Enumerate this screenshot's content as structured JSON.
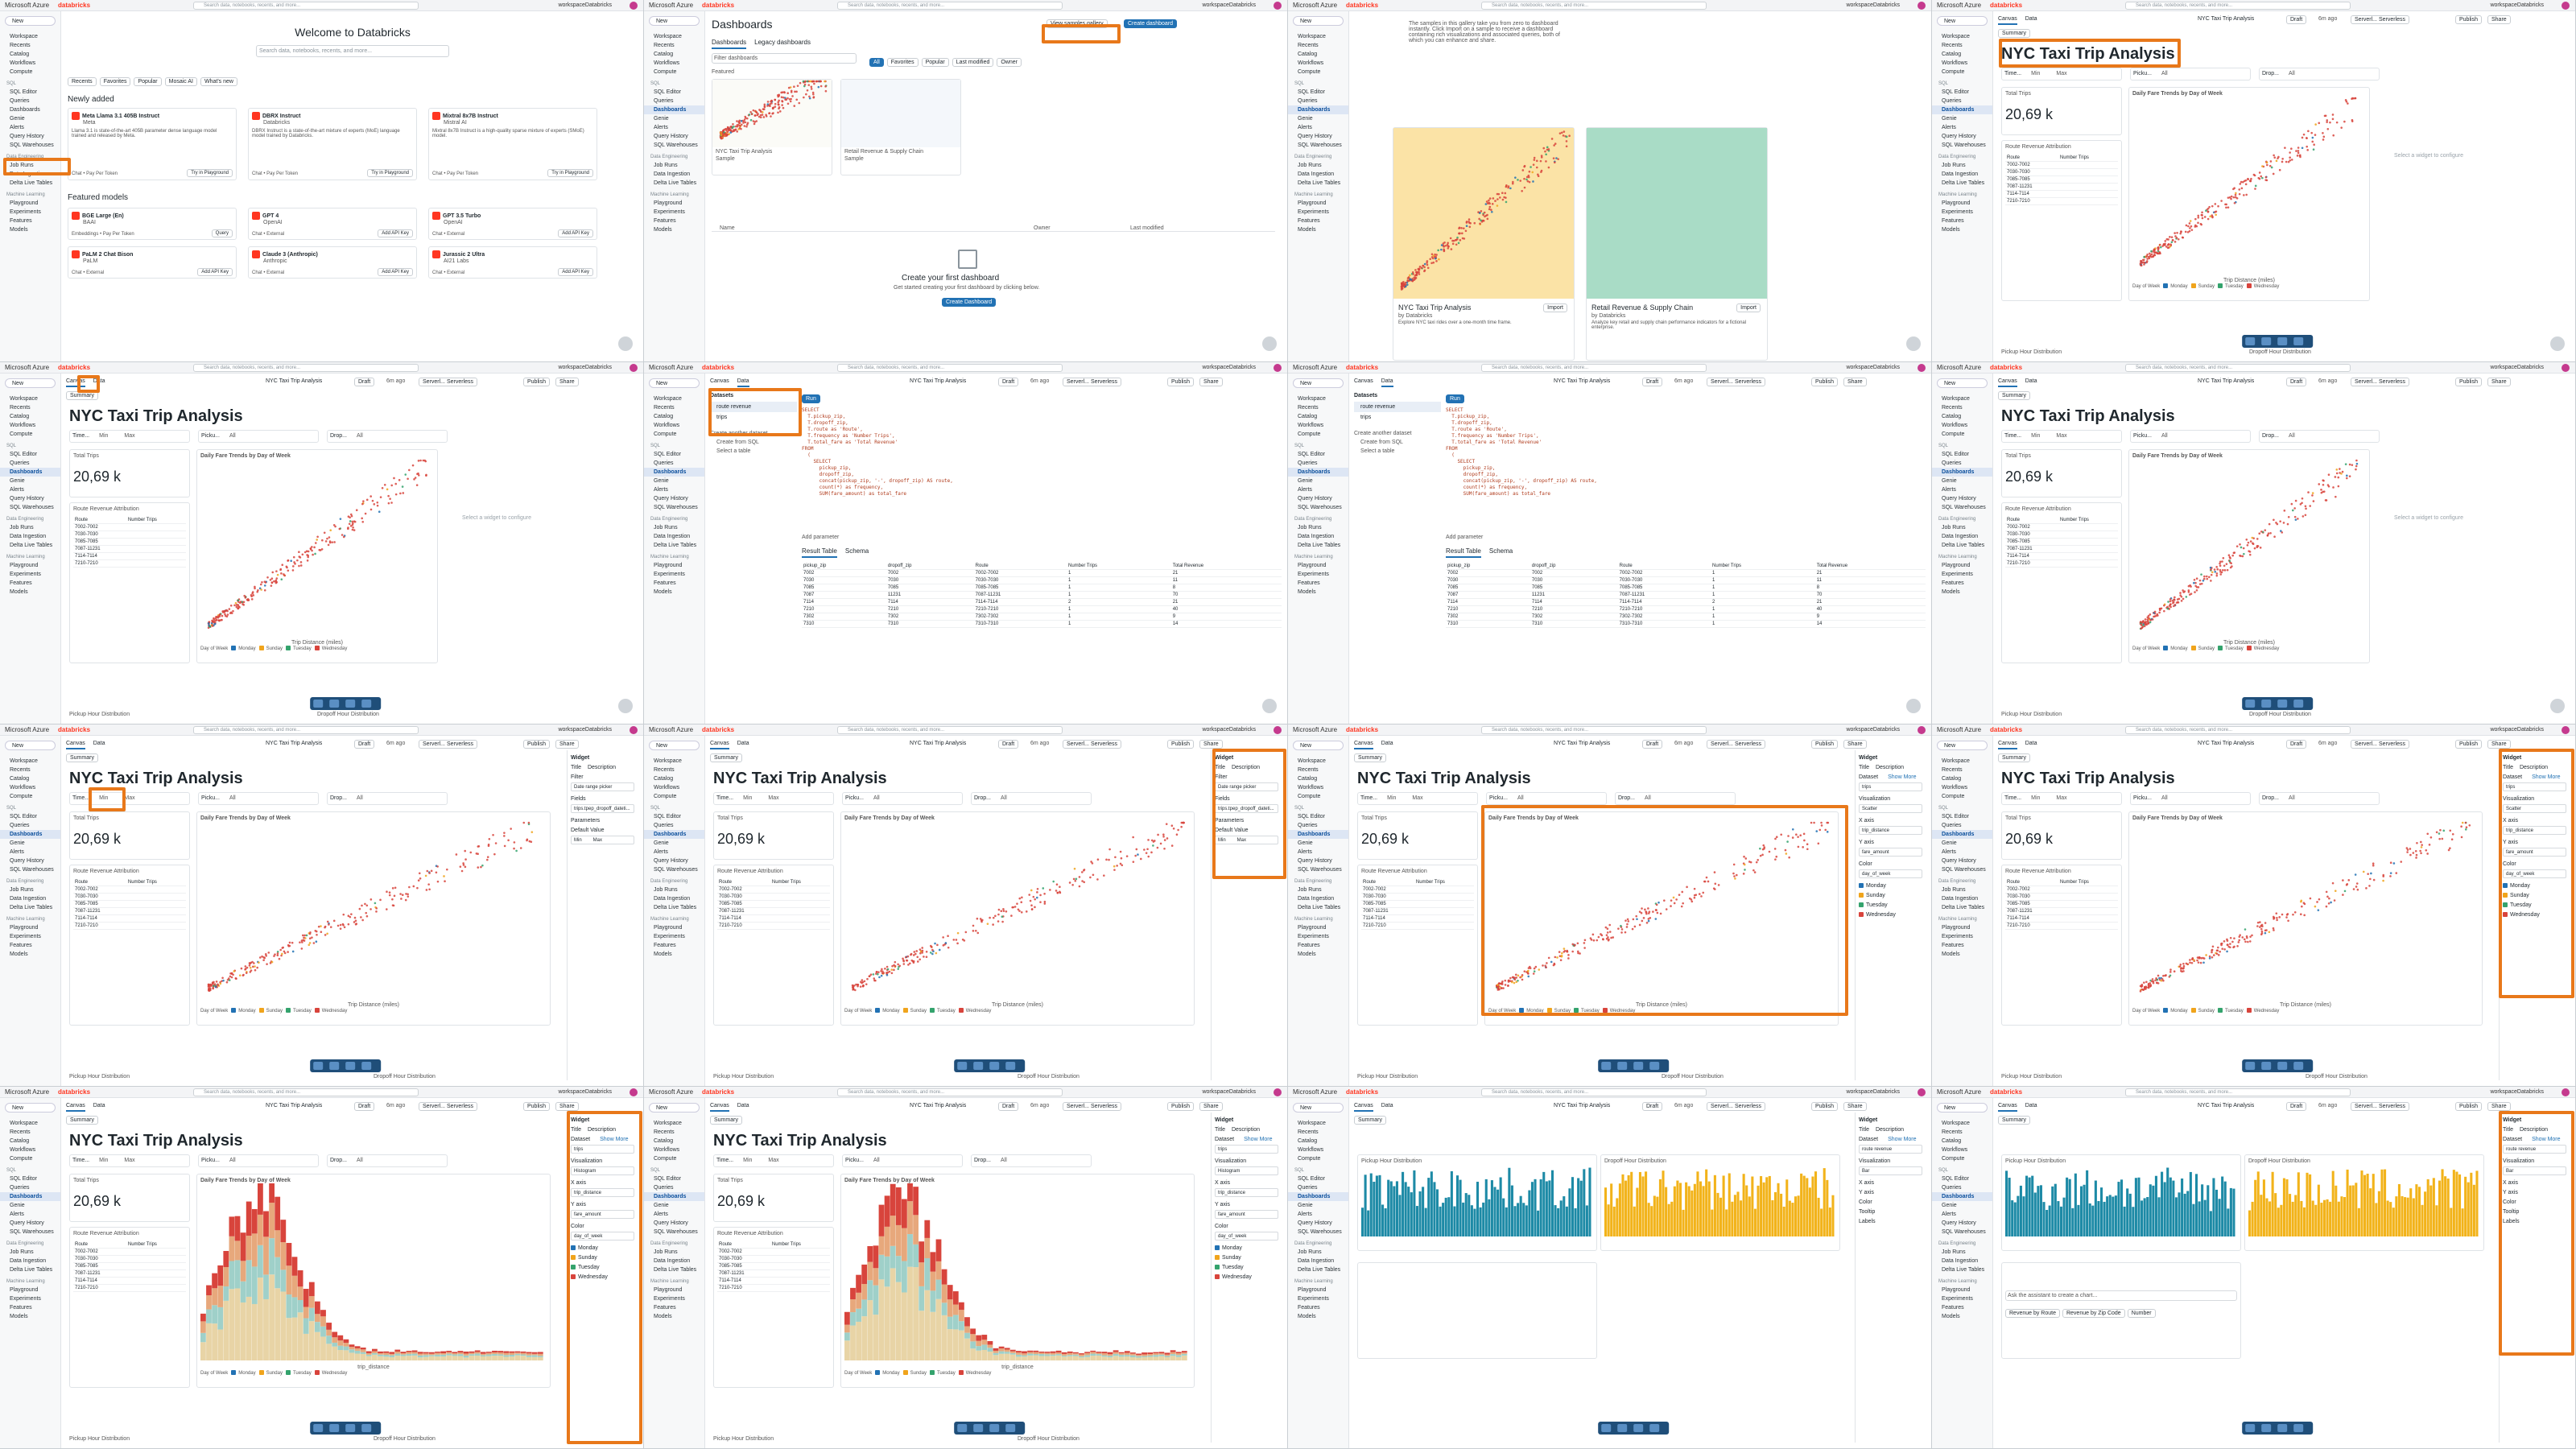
{
  "global": {
    "azure": "Microsoft Azure",
    "brand": "databricks",
    "search_placeholder": "Search data, notebooks, recents, and more...",
    "shortcut": "CTRL + P",
    "workspace": "workspaceDatabricks",
    "new_label": "New"
  },
  "sidebar": {
    "items_top": [
      "Workspace",
      "Recents",
      "Catalog",
      "Workflows",
      "Compute"
    ],
    "group_sql": "SQL",
    "items_sql": [
      "SQL Editor",
      "Queries",
      "Dashboards",
      "Genie",
      "Alerts",
      "Query History",
      "SQL Warehouses"
    ],
    "group_de": "Data Engineering",
    "items_de": [
      "Job Runs",
      "Data Ingestion",
      "Delta Live Tables"
    ],
    "group_ml": "Machine Learning",
    "items_ml": [
      "Playground",
      "Experiments",
      "Features",
      "Models"
    ]
  },
  "welcome": {
    "title": "Welcome to Databricks",
    "search_placeholder": "Search data, notebooks, recents, and more...",
    "filters": [
      "Recents",
      "Favorites",
      "Popular",
      "Mosaic AI",
      "What's new"
    ],
    "newly_added": "Newly added",
    "models_new": [
      {
        "name": "Meta Llama 3.1 405B Instruct",
        "vendor": "Meta",
        "desc": "Llama 3.1 is state-of-the-art 405B parameter dense language model trained and released by Meta."
      },
      {
        "name": "DBRX Instruct",
        "vendor": "Databricks",
        "desc": "DBRX Instruct is a state-of-the-art mixture of experts (MoE) language model trained by Databricks."
      },
      {
        "name": "Mixtral 8x7B Instruct",
        "vendor": "Mistral AI",
        "desc": "Mixtral 8x7B Instruct is a high-quality sparse mixture of experts (SMoE) model."
      }
    ],
    "chat_label": "Chat • Pay Per Token",
    "try_label": "Try in Playground",
    "featured": "Featured models",
    "models_featured": [
      {
        "name": "BGE Large (En)",
        "vendor": "BAAI",
        "sub": "Embeddings • Pay Per Token",
        "btn": "Query"
      },
      {
        "name": "GPT 4",
        "vendor": "OpenAI",
        "sub": "Chat • External",
        "btn": "Add API Key"
      },
      {
        "name": "GPT 3.5 Turbo",
        "vendor": "OpenAI",
        "sub": "Chat • External",
        "btn": "Add API Key"
      },
      {
        "name": "PaLM 2 Chat Bison",
        "vendor": "PaLM",
        "sub": "Chat • External",
        "btn": "Add API Key"
      },
      {
        "name": "Claude 3 (Anthropic)",
        "vendor": "Anthropic",
        "sub": "Chat • External",
        "btn": "Add API Key"
      },
      {
        "name": "Jurassic 2 Ultra",
        "vendor": "AI21 Labs",
        "sub": "Chat • External",
        "btn": "Add API Key"
      }
    ]
  },
  "dashboards": {
    "title": "Dashboards",
    "view_samples": "View samples gallery",
    "create": "Create dashboard",
    "tabs": [
      "Dashboards",
      "Legacy dashboards"
    ],
    "filter_placeholder": "Filter dashboards",
    "chips": [
      "All",
      "Favorites",
      "Popular",
      "Last modified",
      "Owner"
    ],
    "featured": "Featured",
    "samples": [
      {
        "name": "NYC Taxi Trip Analysis",
        "tag": "Sample"
      },
      {
        "name": "Retail Revenue & Supply Chain",
        "tag": "Sample"
      }
    ],
    "col_name": "Name",
    "col_owner": "Owner",
    "col_modified": "Last modified",
    "empty_title": "Create your first dashboard",
    "empty_sub": "Get started creating your first dashboard by clicking below.",
    "empty_btn": "Create Dashboard"
  },
  "gallery": {
    "intro": "The samples in this gallery take you from zero to dashboard instantly. Click Import on a sample to receive a dashboard containing rich visualizations and associated queries, both of which you can enhance and share.",
    "cards": [
      {
        "name": "NYC Taxi Trip Analysis",
        "by": "by Databricks",
        "desc": "Explore NYC taxi rides over a one-month time frame.",
        "btn": "Import"
      },
      {
        "name": "Retail Revenue & Supply Chain",
        "by": "by Databricks",
        "desc": "Analyze key retail and supply chain performance indicators for a fictional enterprise.",
        "btn": "Import"
      }
    ]
  },
  "editor": {
    "tabs": [
      "Canvas",
      "Data"
    ],
    "dash_name": "NYC Taxi Trip Analysis",
    "draft": "Draft",
    "ago": "6m ago",
    "compute": "Serverl... Serverless",
    "publish": "Publish",
    "share": "Share",
    "page_tab": "Summary",
    "title": "NYC Taxi Trip Analysis",
    "filter_time": "Time...",
    "filter_min": "Min",
    "filter_max": "Max",
    "filter_pickup": "Picku...",
    "filter_dropoff": "Drop...",
    "filter_all": "All",
    "total_label": "Total Trips",
    "total_value": "20,69 k",
    "route_title": "Route Revenue Attribution",
    "route_cols": [
      "Route",
      "Number Trips"
    ],
    "routes": [
      "7002-7002",
      "7030-7030",
      "7085-7085",
      "7087-11231",
      "7114-7114",
      "7210-7210"
    ],
    "scatter_title": "Daily Fare Trends by Day of Week",
    "xaxis": "Trip Distance (miles)",
    "yaxis": "Fare Amount (USD)",
    "legend_label": "Day of Week",
    "days": [
      "Monday",
      "Sunday",
      "Tuesday",
      "Wednesday"
    ],
    "pickup_dist": "Pickup Hour Distribution",
    "dropoff_dist": "Dropoff Hour Distribution",
    "configure_hint": "Select a widget to configure",
    "hist_x": "trip_distance",
    "hist_y": "fare_amount"
  },
  "datasets": {
    "title": "Datasets",
    "items": [
      "route revenue",
      "trips"
    ],
    "create_another": "Create another dataset",
    "from_sql": "Create from SQL",
    "select_table": "Select a table",
    "run": "Run",
    "sql": [
      "SELECT",
      "  T.pickup_zip,",
      "  T.dropoff_zip,",
      "  T.route as 'Route',",
      "  T.frequency as 'Number Trips',",
      "  T.total_fare as 'Total Revenue'",
      "FROM",
      "  (",
      "    SELECT",
      "      pickup_zip,",
      "      dropoff_zip,",
      "      concat(pickup_zip, '-', dropoff_zip) AS route,",
      "      count(*) as frequency,",
      "      SUM(fare_amount) as total_fare"
    ],
    "add_param": "Add parameter",
    "result_tabs": [
      "Result Table",
      "Schema"
    ],
    "cols": [
      "pickup_zip",
      "dropoff_zip",
      "Route",
      "Number Trips",
      "Total Revenue"
    ],
    "rows": [
      [
        "7002",
        "7002",
        "7002-7002",
        "1",
        "21"
      ],
      [
        "7030",
        "7030",
        "7030-7030",
        "1",
        "11"
      ],
      [
        "7085",
        "7085",
        "7085-7085",
        "1",
        "8"
      ],
      [
        "7087",
        "11231",
        "7087-11231",
        "1",
        "70"
      ],
      [
        "7114",
        "7114",
        "7114-7114",
        "2",
        "21"
      ],
      [
        "7210",
        "7210",
        "7210-7210",
        "1",
        "40"
      ],
      [
        "7302",
        "7302",
        "7302-7302",
        "1",
        "9"
      ],
      [
        "7310",
        "7310",
        "7310-7310",
        "1",
        "14"
      ]
    ]
  },
  "widget": {
    "title": "Widget",
    "opt_title": "Title",
    "opt_desc": "Description",
    "filter": "Filter",
    "filter_type": "Date range picker",
    "fields": "Fields",
    "field_val": "trips.tpep_dropoff_dateti...",
    "parameters": "Parameters",
    "default_value": "Default Value",
    "dataset": "Dataset",
    "dataset_val": "trips",
    "dataset_val2": "route revenue",
    "show_more": "Show More",
    "viz": "Visualization",
    "viz_scatter": "Scatter",
    "viz_hist": "Histogram",
    "viz_bar": "Bar",
    "xaxis": "X axis",
    "yaxis": "Y axis",
    "color": "Color",
    "color_val": "day_of_week",
    "tooltip": "Tooltip",
    "labels": "Labels",
    "ask_placeholder": "Ask the assistant to create a chart...",
    "suggestions": [
      "Revenue by Route",
      "Revenue by Zip Code",
      "Number"
    ]
  },
  "colors": {
    "highlight": "#e8781a",
    "monday": "#2272b4",
    "sunday": "#f0a41c",
    "tuesday": "#34a36d",
    "wednesday": "#d8443c",
    "pickup_bar": "#1d8aa6",
    "dropoff_bar": "#f2b31a"
  }
}
